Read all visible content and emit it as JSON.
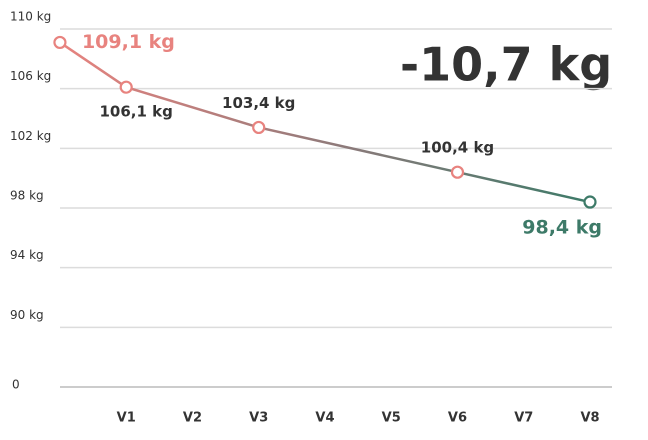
{
  "chart_data": {
    "type": "line",
    "change": "-10,7 kg",
    "x": [
      0,
      1,
      3,
      6,
      8
    ],
    "values": [
      109.1,
      106.1,
      103.4,
      100.4,
      98.4
    ],
    "value_labels": [
      "109,1 kg",
      "106,1 kg",
      "103,4 kg",
      "100,4 kg",
      "98,4 kg"
    ],
    "colors": [
      "#e8837f",
      "#e8837f",
      "#e8837f",
      "#e8837f",
      "#3d7a68"
    ],
    "xlim": [
      -0.15,
      8
    ],
    "xticks": [
      {
        "value": 1,
        "label": "V1"
      },
      {
        "value": 2,
        "label": "V2"
      },
      {
        "value": 3,
        "label": "V3"
      },
      {
        "value": 4,
        "label": "V4"
      },
      {
        "value": 5,
        "label": "V5"
      },
      {
        "value": 6,
        "label": "V6"
      },
      {
        "value": 7,
        "label": "V7"
      },
      {
        "value": 8,
        "label": "V8"
      }
    ],
    "ylim": [
      86,
      110
    ],
    "baseline_label": "0",
    "yticks": [
      {
        "value": 90,
        "label": "90 kg"
      },
      {
        "value": 94,
        "label": "94 kg"
      },
      {
        "value": 98,
        "label": "98 kg"
      },
      {
        "value": 102,
        "label": "102 kg"
      },
      {
        "value": 106,
        "label": "106 kg"
      },
      {
        "value": 110,
        "label": "110 kg"
      }
    ],
    "grid": true
  }
}
